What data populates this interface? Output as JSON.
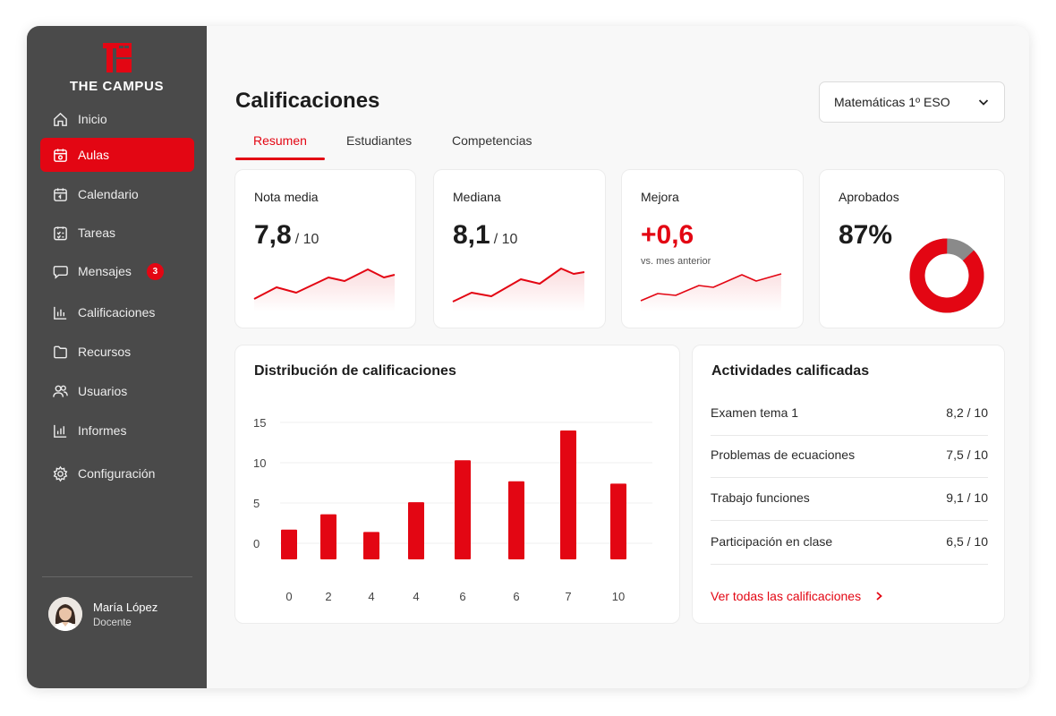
{
  "colors": {
    "accent": "#e30613",
    "sidebar": "#4a4a4a",
    "donut_rest": "#8a8a8a"
  },
  "brand": {
    "name": "THE CAMPUS",
    "logo_icon": "the-campus-logo"
  },
  "sidebar": {
    "items": [
      {
        "label": "Inicio",
        "icon": "home-icon",
        "active": false
      },
      {
        "label": "Aulas",
        "icon": "classroom-calendar-icon",
        "active": true
      },
      {
        "label": "Calendario",
        "icon": "calendar-icon",
        "active": false
      },
      {
        "label": "Tareas",
        "icon": "tasks-icon",
        "active": false
      },
      {
        "label": "Mensajes",
        "icon": "message-icon",
        "active": false,
        "badge": "3"
      },
      {
        "label": "Calificaciones",
        "icon": "bar-chart-icon",
        "active": false
      },
      {
        "label": "Recursos",
        "icon": "folder-icon",
        "active": false
      },
      {
        "label": "Usuarios",
        "icon": "users-icon",
        "active": false
      },
      {
        "label": "Informes",
        "icon": "report-icon",
        "active": false
      },
      {
        "label": "Configuración",
        "icon": "gear-icon",
        "active": false
      }
    ],
    "user": {
      "name": "María López",
      "role": "Docente"
    }
  },
  "header": {
    "title": "Calificaciones",
    "course": "Matemáticas 1º ESO",
    "tabs": [
      {
        "label": "Resumen",
        "active": true
      },
      {
        "label": "Estudiantes",
        "active": false
      },
      {
        "label": "Competencias",
        "active": false
      }
    ]
  },
  "kpis": [
    {
      "label": "Nota media",
      "value": "7,8",
      "unit": "/ 10"
    },
    {
      "label": "Mediana",
      "value": "8,1",
      "unit": "/ 10"
    },
    {
      "label": "Mejora",
      "value": "+0,6",
      "sub": "vs. mes anterior"
    },
    {
      "label": "Aprobados",
      "value": "87%",
      "approved_fraction": 0.87
    }
  ],
  "chart_data": {
    "type": "bar",
    "title": "Distribución de calificaciones",
    "categories": [
      "0",
      "2",
      "4",
      "4",
      "6",
      "6",
      "7",
      "10"
    ],
    "values": [
      1.7,
      3.6,
      1.4,
      5.1,
      10.3,
      7.7,
      14.0,
      7.4
    ],
    "ylim": [
      -2,
      16
    ],
    "yticks": [
      0,
      5,
      10,
      15
    ],
    "grid": true,
    "xlabel": "",
    "ylabel": ""
  },
  "activities": {
    "title": "Actividades calificadas",
    "items": [
      {
        "name": "Examen tema 1",
        "score": "8,2 / 10"
      },
      {
        "name": "Problemas de ecuaciones",
        "score": "7,5 / 10"
      },
      {
        "name": "Trabajo funciones",
        "score": "9,1 / 10"
      },
      {
        "name": "Participación en clase",
        "score": "6,5 / 10"
      }
    ],
    "link_label": "Ver todas las calificaciones"
  }
}
